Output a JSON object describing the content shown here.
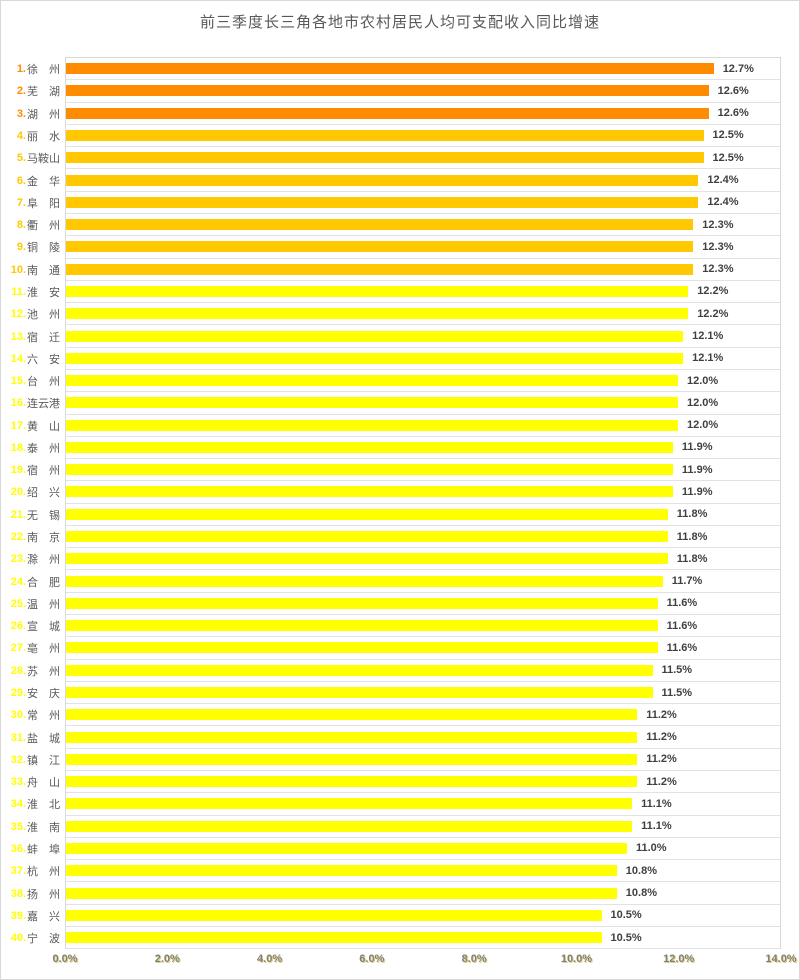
{
  "chart_data": {
    "type": "bar",
    "orientation": "horizontal",
    "title": "前三季度长三角各地市农村居民人均可支配收入同比增速",
    "xlabel": "",
    "ylabel": "",
    "xlim": [
      0,
      14
    ],
    "x_tick_labels": [
      "0.0%",
      "2.0%",
      "4.0%",
      "6.0%",
      "8.0%",
      "10.0%",
      "12.0%",
      "14.0%"
    ],
    "grid": "category-separators-only",
    "legend": "none",
    "colors": {
      "rank_1_3_bar": "#FF8C00",
      "rank_4_10_bar": "#FFC800",
      "rank_11_40_bar": "#FFFF00",
      "gridline": "#E2E2E2",
      "city_text": "#595959",
      "value_text": "#404040",
      "axis_text": "#7F7F7F",
      "title_text": "#595959"
    },
    "rows": [
      {
        "rank": "1.",
        "city": "徐　州",
        "value": 12.7,
        "label": "12.7%",
        "color": "#FF8C00"
      },
      {
        "rank": "2.",
        "city": "芜　湖",
        "value": 12.6,
        "label": "12.6%",
        "color": "#FF8C00"
      },
      {
        "rank": "3.",
        "city": "湖　州",
        "value": 12.6,
        "label": "12.6%",
        "color": "#FF8C00"
      },
      {
        "rank": "4.",
        "city": "丽　水",
        "value": 12.5,
        "label": "12.5%",
        "color": "#FFC800"
      },
      {
        "rank": "5.",
        "city": "马鞍山",
        "value": 12.5,
        "label": "12.5%",
        "color": "#FFC800"
      },
      {
        "rank": "6.",
        "city": "金　华",
        "value": 12.4,
        "label": "12.4%",
        "color": "#FFC800"
      },
      {
        "rank": "7.",
        "city": "阜　阳",
        "value": 12.4,
        "label": "12.4%",
        "color": "#FFC800"
      },
      {
        "rank": "8.",
        "city": "衢　州",
        "value": 12.3,
        "label": "12.3%",
        "color": "#FFC800"
      },
      {
        "rank": "9.",
        "city": "铜　陵",
        "value": 12.3,
        "label": "12.3%",
        "color": "#FFC800"
      },
      {
        "rank": "10.",
        "city": "南　通",
        "value": 12.3,
        "label": "12.3%",
        "color": "#FFC800"
      },
      {
        "rank": "11.",
        "city": "淮　安",
        "value": 12.2,
        "label": "12.2%",
        "color": "#FFFF00"
      },
      {
        "rank": "12.",
        "city": "池　州",
        "value": 12.2,
        "label": "12.2%",
        "color": "#FFFF00"
      },
      {
        "rank": "13.",
        "city": "宿　迁",
        "value": 12.1,
        "label": "12.1%",
        "color": "#FFFF00"
      },
      {
        "rank": "14.",
        "city": "六　安",
        "value": 12.1,
        "label": "12.1%",
        "color": "#FFFF00"
      },
      {
        "rank": "15.",
        "city": "台　州",
        "value": 12.0,
        "label": "12.0%",
        "color": "#FFFF00"
      },
      {
        "rank": "16.",
        "city": "连云港",
        "value": 12.0,
        "label": "12.0%",
        "color": "#FFFF00"
      },
      {
        "rank": "17.",
        "city": "黄　山",
        "value": 12.0,
        "label": "12.0%",
        "color": "#FFFF00"
      },
      {
        "rank": "18.",
        "city": "泰　州",
        "value": 11.9,
        "label": "11.9%",
        "color": "#FFFF00"
      },
      {
        "rank": "19.",
        "city": "宿　州",
        "value": 11.9,
        "label": "11.9%",
        "color": "#FFFF00"
      },
      {
        "rank": "20.",
        "city": "绍　兴",
        "value": 11.9,
        "label": "11.9%",
        "color": "#FFFF00"
      },
      {
        "rank": "21.",
        "city": "无　锡",
        "value": 11.8,
        "label": "11.8%",
        "color": "#FFFF00"
      },
      {
        "rank": "22.",
        "city": "南　京",
        "value": 11.8,
        "label": "11.8%",
        "color": "#FFFF00"
      },
      {
        "rank": "23.",
        "city": "滁　州",
        "value": 11.8,
        "label": "11.8%",
        "color": "#FFFF00"
      },
      {
        "rank": "24.",
        "city": "合　肥",
        "value": 11.7,
        "label": "11.7%",
        "color": "#FFFF00"
      },
      {
        "rank": "25.",
        "city": "温　州",
        "value": 11.6,
        "label": "11.6%",
        "color": "#FFFF00"
      },
      {
        "rank": "26.",
        "city": "宣　城",
        "value": 11.6,
        "label": "11.6%",
        "color": "#FFFF00"
      },
      {
        "rank": "27.",
        "city": "亳　州",
        "value": 11.6,
        "label": "11.6%",
        "color": "#FFFF00"
      },
      {
        "rank": "28.",
        "city": "苏　州",
        "value": 11.5,
        "label": "11.5%",
        "color": "#FFFF00"
      },
      {
        "rank": "29.",
        "city": "安　庆",
        "value": 11.5,
        "label": "11.5%",
        "color": "#FFFF00"
      },
      {
        "rank": "30.",
        "city": "常　州",
        "value": 11.2,
        "label": "11.2%",
        "color": "#FFFF00"
      },
      {
        "rank": "31.",
        "city": "盐　城",
        "value": 11.2,
        "label": "11.2%",
        "color": "#FFFF00"
      },
      {
        "rank": "32.",
        "city": "镇　江",
        "value": 11.2,
        "label": "11.2%",
        "color": "#FFFF00"
      },
      {
        "rank": "33.",
        "city": "舟　山",
        "value": 11.2,
        "label": "11.2%",
        "color": "#FFFF00"
      },
      {
        "rank": "34.",
        "city": "淮　北",
        "value": 11.1,
        "label": "11.1%",
        "color": "#FFFF00"
      },
      {
        "rank": "35.",
        "city": "淮　南",
        "value": 11.1,
        "label": "11.1%",
        "color": "#FFFF00"
      },
      {
        "rank": "36.",
        "city": "蚌　埠",
        "value": 11.0,
        "label": "11.0%",
        "color": "#FFFF00"
      },
      {
        "rank": "37.",
        "city": "杭　州",
        "value": 10.8,
        "label": "10.8%",
        "color": "#FFFF00"
      },
      {
        "rank": "38.",
        "city": "扬　州",
        "value": 10.8,
        "label": "10.8%",
        "color": "#FFFF00"
      },
      {
        "rank": "39.",
        "city": "嘉　兴",
        "value": 10.5,
        "label": "10.5%",
        "color": "#FFFF00"
      },
      {
        "rank": "40.",
        "city": "宁　波",
        "value": 10.5,
        "label": "10.5%",
        "color": "#FFFF00"
      }
    ]
  }
}
